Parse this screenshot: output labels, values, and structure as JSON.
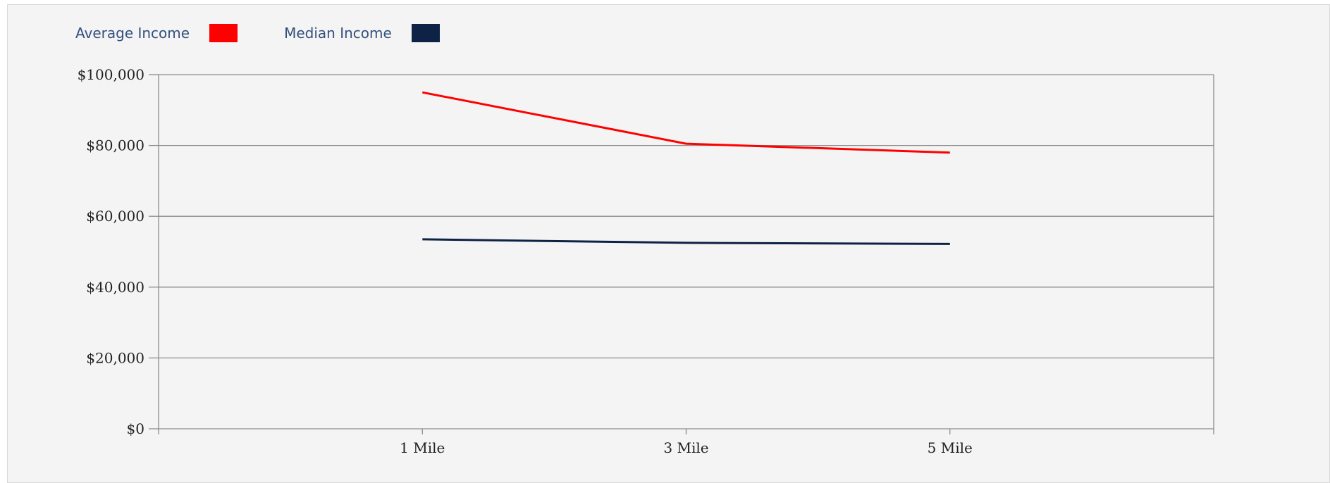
{
  "chart_data": {
    "type": "line",
    "categories": [
      "1 Mile",
      "3 Mile",
      "5 Mile"
    ],
    "series": [
      {
        "name": "Average Income",
        "color": "#ff0000",
        "values": [
          95000,
          80500,
          78000
        ]
      },
      {
        "name": "Median Income",
        "color": "#0d2244",
        "values": [
          53500,
          52500,
          52200
        ]
      }
    ],
    "y_ticks": [
      0,
      20000,
      40000,
      60000,
      80000,
      100000
    ],
    "y_tick_labels": [
      "$0",
      "$20,000",
      "$40,000",
      "$60,000",
      "$80,000",
      "$100,000"
    ],
    "ylim": [
      0,
      100000
    ],
    "grid": true,
    "legend_position": "top-left",
    "title": "",
    "xlabel": "",
    "ylabel": ""
  }
}
